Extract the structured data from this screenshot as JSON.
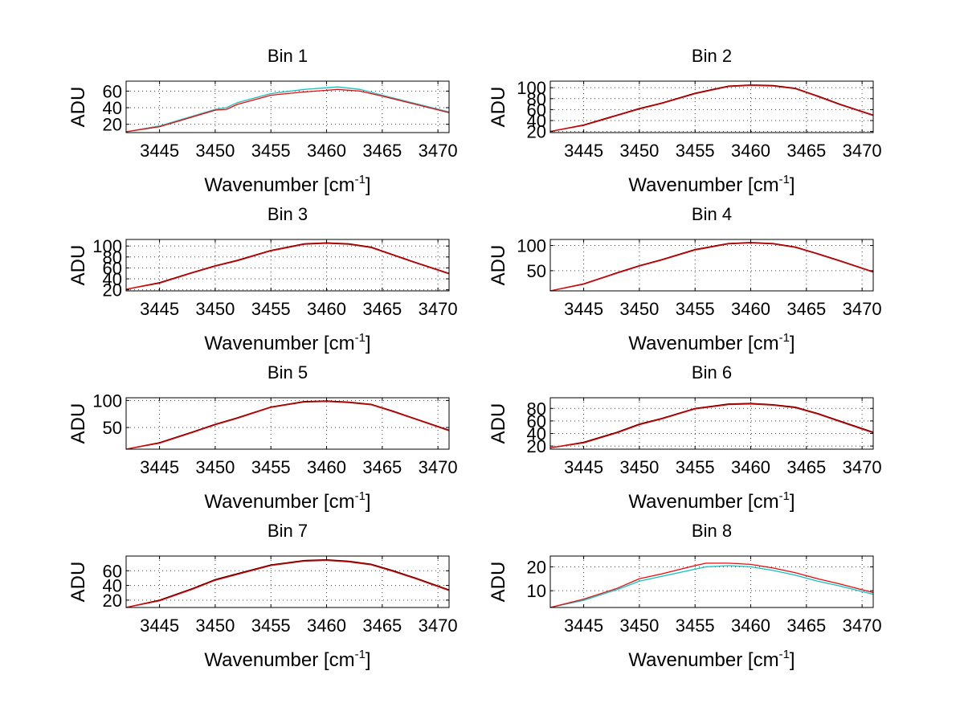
{
  "chart_data": {
    "type": "line",
    "figure": "Spectra per bin (subplot grid 4x2)",
    "x_label_text": "Wavenumber [cm",
    "x_label_exp": "-1",
    "x_label_close": "]",
    "y_label": "ADU",
    "xlim": [
      3442,
      3471
    ],
    "xticks": [
      3445,
      3450,
      3455,
      3460,
      3465,
      3470
    ],
    "series_colors": [
      "#00c8c8",
      "#00a000",
      "#e0b000",
      "#ff0000",
      "#000000"
    ],
    "panels": [
      {
        "title": "Bin 1",
        "ylim": [
          10,
          72
        ],
        "yticks": [
          20,
          40,
          60
        ],
        "series": [
          {
            "name": "cyan",
            "x": [
              3442,
              3445,
              3448,
              3450,
              3451,
              3452,
              3455,
              3458,
              3460,
              3461,
              3463,
              3465,
              3468,
              3471
            ],
            "y": [
              11,
              18,
              30,
              38,
              40,
              46,
              57,
              62,
              64,
              65,
              62,
              55,
              45,
              35
            ]
          },
          {
            "name": "red",
            "x": [
              3442,
              3445,
              3448,
              3450,
              3451,
              3452,
              3455,
              3458,
              3460,
              3461,
              3463,
              3465,
              3468,
              3471
            ],
            "y": [
              11,
              17,
              29,
              37,
              38,
              44,
              55,
              59,
              61,
              62,
              60,
              54,
              44,
              34
            ]
          }
        ]
      },
      {
        "title": "Bin 2",
        "ylim": [
          18,
          112
        ],
        "yticks": [
          20,
          40,
          60,
          80,
          100
        ],
        "series": [
          {
            "name": "black",
            "x": [
              3442,
              3445,
              3448,
              3450,
              3452,
              3455,
              3458,
              3460,
              3462,
              3464,
              3466,
              3468,
              3471
            ],
            "y": [
              20,
              32,
              50,
              62,
              72,
              90,
              103,
              105,
              104,
              99,
              85,
              70,
              50
            ]
          },
          {
            "name": "red",
            "x": [
              3442,
              3445,
              3448,
              3450,
              3452,
              3455,
              3458,
              3460,
              3462,
              3464,
              3466,
              3468,
              3471
            ],
            "y": [
              20,
              31,
              49,
              61,
              71,
              89,
              102,
              104,
              103,
              98,
              84,
              69,
              49
            ]
          }
        ]
      },
      {
        "title": "Bin 3",
        "ylim": [
          18,
          112
        ],
        "yticks": [
          20,
          40,
          60,
          80,
          100
        ],
        "series": [
          {
            "name": "black",
            "x": [
              3442,
              3445,
              3448,
              3450,
              3452,
              3455,
              3458,
              3460,
              3462,
              3464,
              3466,
              3468,
              3471
            ],
            "y": [
              21,
              33,
              52,
              64,
              74,
              92,
              104,
              106,
              104,
              98,
              84,
              70,
              50
            ]
          },
          {
            "name": "red",
            "x": [
              3442,
              3445,
              3448,
              3450,
              3452,
              3455,
              3458,
              3460,
              3462,
              3464,
              3466,
              3468,
              3471
            ],
            "y": [
              21,
              32,
              51,
              63,
              73,
              91,
              103,
              105,
              103,
              97,
              83,
              69,
              49
            ]
          }
        ]
      },
      {
        "title": "Bin 4",
        "ylim": [
          10,
          112
        ],
        "yticks": [
          50,
          100
        ],
        "series": [
          {
            "name": "black",
            "x": [
              3442,
              3445,
              3448,
              3450,
              3452,
              3455,
              3458,
              3460,
              3462,
              3464,
              3466,
              3468,
              3471
            ],
            "y": [
              10,
              24,
              46,
              60,
              72,
              92,
              104,
              106,
              104,
              97,
              84,
              70,
              48
            ]
          },
          {
            "name": "red",
            "x": [
              3442,
              3445,
              3448,
              3450,
              3452,
              3455,
              3458,
              3460,
              3462,
              3464,
              3466,
              3468,
              3471
            ],
            "y": [
              10,
              23,
              45,
              59,
              71,
              91,
              103,
              105,
              103,
              96,
              83,
              69,
              47
            ]
          }
        ]
      },
      {
        "title": "Bin 5",
        "ylim": [
          10,
          105
        ],
        "yticks": [
          50,
          100
        ],
        "series": [
          {
            "name": "black",
            "x": [
              3442,
              3445,
              3448,
              3450,
              3452,
              3455,
              3458,
              3460,
              3462,
              3464,
              3466,
              3468,
              3471
            ],
            "y": [
              10,
              22,
              42,
              56,
              68,
              88,
              98,
              99,
              97,
              93,
              80,
              66,
              45
            ]
          },
          {
            "name": "red",
            "x": [
              3442,
              3445,
              3448,
              3450,
              3452,
              3455,
              3458,
              3460,
              3462,
              3464,
              3466,
              3468,
              3471
            ],
            "y": [
              10,
              21,
              41,
              55,
              67,
              87,
              97,
              98,
              96,
              92,
              79,
              65,
              44
            ]
          }
        ]
      },
      {
        "title": "Bin 6",
        "ylim": [
          15,
          97
        ],
        "yticks": [
          20,
          40,
          60,
          80
        ],
        "series": [
          {
            "name": "black",
            "x": [
              3442,
              3445,
              3448,
              3450,
              3452,
              3455,
              3458,
              3460,
              3462,
              3464,
              3466,
              3468,
              3471
            ],
            "y": [
              17,
              26,
              42,
              55,
              64,
              80,
              87,
              88,
              86,
              82,
              72,
              60,
              42
            ]
          },
          {
            "name": "red",
            "x": [
              3442,
              3445,
              3448,
              3450,
              3452,
              3455,
              3458,
              3460,
              3462,
              3464,
              3466,
              3468,
              3471
            ],
            "y": [
              17,
              25,
              41,
              54,
              63,
              79,
              86,
              87,
              85,
              81,
              71,
              59,
              41
            ]
          }
        ]
      },
      {
        "title": "Bin 7",
        "ylim": [
          10,
          80
        ],
        "yticks": [
          20,
          40,
          60
        ],
        "series": [
          {
            "name": "black",
            "x": [
              3442,
              3445,
              3448,
              3450,
              3452,
              3455,
              3458,
              3460,
              3462,
              3464,
              3466,
              3468,
              3471
            ],
            "y": [
              10,
              20,
              36,
              48,
              56,
              68,
              74,
              75,
              73,
              69,
              60,
              50,
              34
            ]
          },
          {
            "name": "red",
            "x": [
              3442,
              3445,
              3448,
              3450,
              3452,
              3455,
              3458,
              3460,
              3462,
              3464,
              3466,
              3468,
              3471
            ],
            "y": [
              10,
              19,
              35,
              47,
              55,
              67,
              73,
              74,
              72,
              68,
              59,
              49,
              33
            ]
          }
        ]
      },
      {
        "title": "Bin 8",
        "ylim": [
          3,
          24.5
        ],
        "yticks": [
          10,
          20
        ],
        "series": [
          {
            "name": "cyan",
            "x": [
              3442,
              3445,
              3448,
              3450,
              3452,
              3455,
              3456,
              3458,
              3460,
              3462,
              3464,
              3466,
              3468,
              3471
            ],
            "y": [
              3,
              6,
              10.5,
              14,
              16,
              19,
              20,
              20.5,
              20,
              18.5,
              16.5,
              14,
              12,
              8.5
            ]
          },
          {
            "name": "red",
            "x": [
              3442,
              3445,
              3448,
              3450,
              3452,
              3455,
              3456,
              3458,
              3460,
              3462,
              3464,
              3466,
              3468,
              3471
            ],
            "y": [
              3,
              6.5,
              11,
              15,
              17,
              20.5,
              21.5,
              21.5,
              21,
              19.5,
              17.5,
              15,
              12.8,
              9.2
            ]
          }
        ]
      }
    ]
  }
}
